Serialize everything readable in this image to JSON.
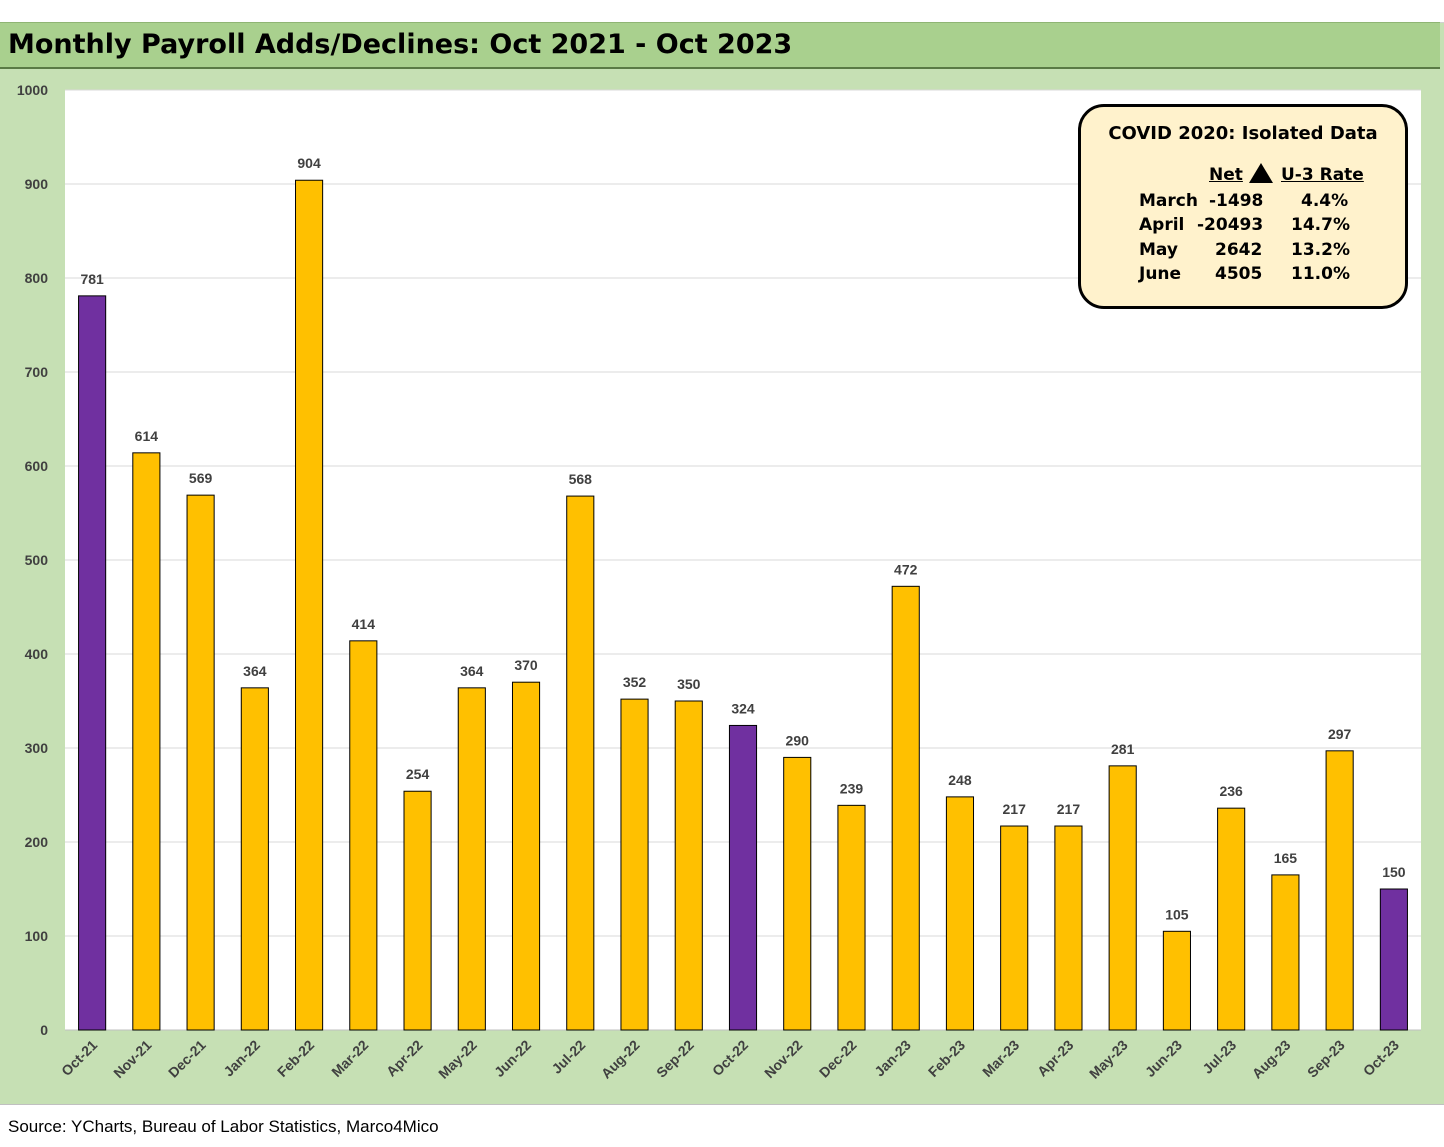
{
  "title": "Monthly Payroll Adds/Declines: Oct 2021 - Oct 2023",
  "source": "Source: YCharts, Bureau of Labor Statistics, Marco4Mico",
  "colors": {
    "highlight": "#7030a0",
    "default": "#ffc000",
    "frame": "#c6e0b4",
    "title_bar": "#a9d08e",
    "legend_fill": "#fff2cc"
  },
  "chart_data": {
    "type": "bar",
    "title": "Monthly Payroll Adds/Declines: Oct 2021 - Oct 2023",
    "xlabel": "",
    "ylabel": "",
    "ylim": [
      0,
      1000
    ],
    "yticks": [
      0,
      100,
      200,
      300,
      400,
      500,
      600,
      700,
      800,
      900,
      1000
    ],
    "ytick_labels": [
      "0",
      "100",
      "200",
      "300",
      "400",
      "500",
      "600",
      "700",
      "800",
      "900",
      "1000"
    ],
    "grid": true,
    "categories": [
      "Oct-21",
      "Nov-21",
      "Dec-21",
      "Jan-22",
      "Feb-22",
      "Mar-22",
      "Apr-22",
      "May-22",
      "Jun-22",
      "Jul-22",
      "Aug-22",
      "Sep-22",
      "Oct-22",
      "Nov-22",
      "Dec-22",
      "Jan-23",
      "Feb-23",
      "Mar-23",
      "Apr-23",
      "May-23",
      "Jun-23",
      "Jul-23",
      "Aug-23",
      "Sep-23",
      "Oct-23"
    ],
    "values": [
      781,
      614,
      569,
      364,
      904,
      414,
      254,
      364,
      370,
      568,
      352,
      350,
      324,
      290,
      239,
      472,
      248,
      217,
      217,
      281,
      105,
      236,
      165,
      297,
      150
    ],
    "highlighted": [
      "Oct-21",
      "Oct-22",
      "Oct-23"
    ],
    "annotation": {
      "title": "COVID 2020: Isolated Data",
      "headers": [
        "Net",
        "U-3 Rate"
      ],
      "rows": [
        {
          "month": "March",
          "net": "-1498",
          "rate": "4.4%"
        },
        {
          "month": "April",
          "net": "-20493",
          "rate": "14.7%"
        },
        {
          "month": "May",
          "net": "2642",
          "rate": "13.2%"
        },
        {
          "month": "June",
          "net": "4505",
          "rate": "11.0%"
        }
      ]
    }
  }
}
